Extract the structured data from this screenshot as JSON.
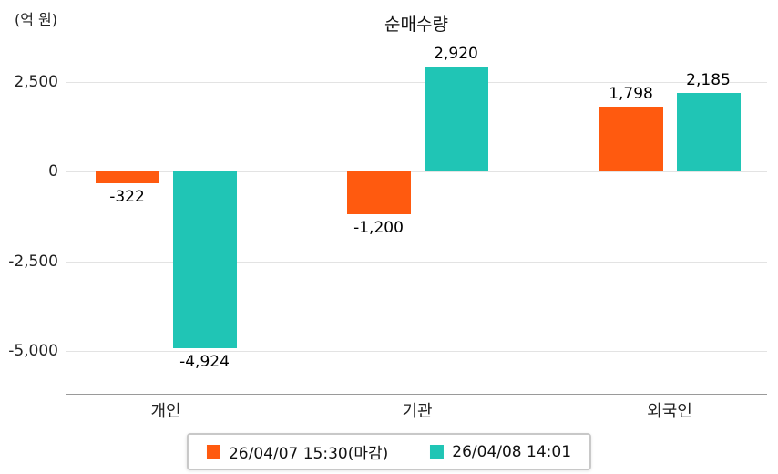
{
  "chart_data": {
    "type": "bar",
    "title": "순매수량",
    "unit_label": "(억 원)",
    "categories": [
      "개인",
      "기관",
      "외국인"
    ],
    "series": [
      {
        "name": "26/04/07 15:30(마감)",
        "color": "#ff5a0f",
        "values": [
          -322,
          -1200,
          1798
        ]
      },
      {
        "name": "26/04/08 14:01",
        "color": "#20c5b5",
        "values": [
          -4924,
          2920,
          2185
        ]
      }
    ],
    "value_labels": [
      [
        "-322",
        "-1,200",
        "1,798"
      ],
      [
        "-4,924",
        "2,920",
        "2,185"
      ]
    ],
    "y_ticks": [
      2500,
      0,
      -2500,
      -5000
    ],
    "y_tick_labels": [
      "2,500",
      "0",
      "-2,500",
      "-5,000"
    ],
    "ylim": [
      -5600,
      3300
    ],
    "grid": true,
    "legend_position": "bottom"
  }
}
